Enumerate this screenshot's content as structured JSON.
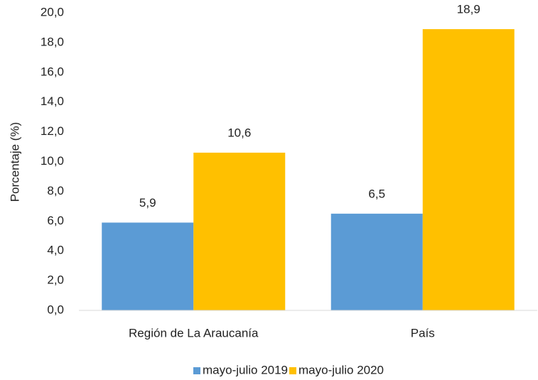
{
  "chart_data": {
    "type": "bar",
    "y_label": "Porcentaje (%)",
    "categories": [
      "Región de La Araucanía",
      "País"
    ],
    "series": [
      {
        "name": "mayo-julio 2019",
        "color": "#5b9bd5",
        "values": [
          5.9,
          6.5
        ],
        "value_labels": [
          "5,9",
          "6,5"
        ]
      },
      {
        "name": "mayo-julio 2020",
        "color": "#ffc000",
        "values": [
          10.6,
          18.9
        ],
        "value_labels": [
          "10,6",
          "18,9"
        ]
      }
    ],
    "ylim": [
      0,
      20
    ],
    "yticks": [
      {
        "value": 0,
        "label": "0,0"
      },
      {
        "value": 2,
        "label": "2,0"
      },
      {
        "value": 4,
        "label": "4,0"
      },
      {
        "value": 6,
        "label": "6,0"
      },
      {
        "value": 8,
        "label": "8,0"
      },
      {
        "value": 10,
        "label": "10,0"
      },
      {
        "value": 12,
        "label": "12,0"
      },
      {
        "value": 14,
        "label": "14,0"
      },
      {
        "value": 16,
        "label": "16,0"
      },
      {
        "value": 18,
        "label": "18,0"
      },
      {
        "value": 20,
        "label": "20,0"
      }
    ],
    "grid": false,
    "legend": "bottom"
  }
}
